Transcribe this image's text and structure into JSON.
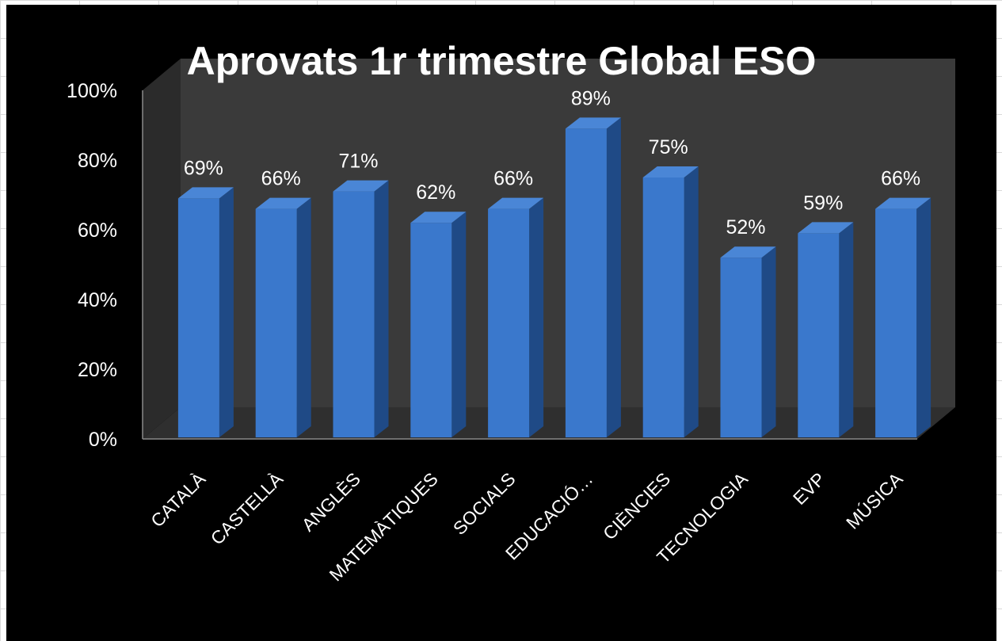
{
  "chart_data": {
    "type": "bar",
    "title": "Aprovats 1r trimestre  Global ESO",
    "categories": [
      "CATALÀ",
      "CASTELLÀ",
      "ANGLÈS",
      "MATEMÀTIQUES",
      "SOCIALS",
      "EDUCACIÓ…",
      "CIÈNCIES",
      "TECNOLOGIA",
      "EVP",
      "MÚSICA"
    ],
    "values": [
      69,
      66,
      71,
      62,
      66,
      89,
      75,
      52,
      59,
      66
    ],
    "data_labels": [
      "69%",
      "66%",
      "71%",
      "62%",
      "66%",
      "89%",
      "75%",
      "52%",
      "59%",
      "66%"
    ],
    "ylim": [
      0,
      100
    ],
    "y_ticks": [
      "0%",
      "20%",
      "40%",
      "60%",
      "80%",
      "100%"
    ],
    "xlabel": "",
    "ylabel": "",
    "grid": false,
    "legend": "none",
    "style": "3d-column"
  },
  "colors": {
    "background": "#000000",
    "back_wall": "#3a3a3a",
    "bar_front": "#3a78cc",
    "bar_side": "#1f4a86",
    "bar_top": "#4a86d6",
    "text": "#ffffff"
  }
}
